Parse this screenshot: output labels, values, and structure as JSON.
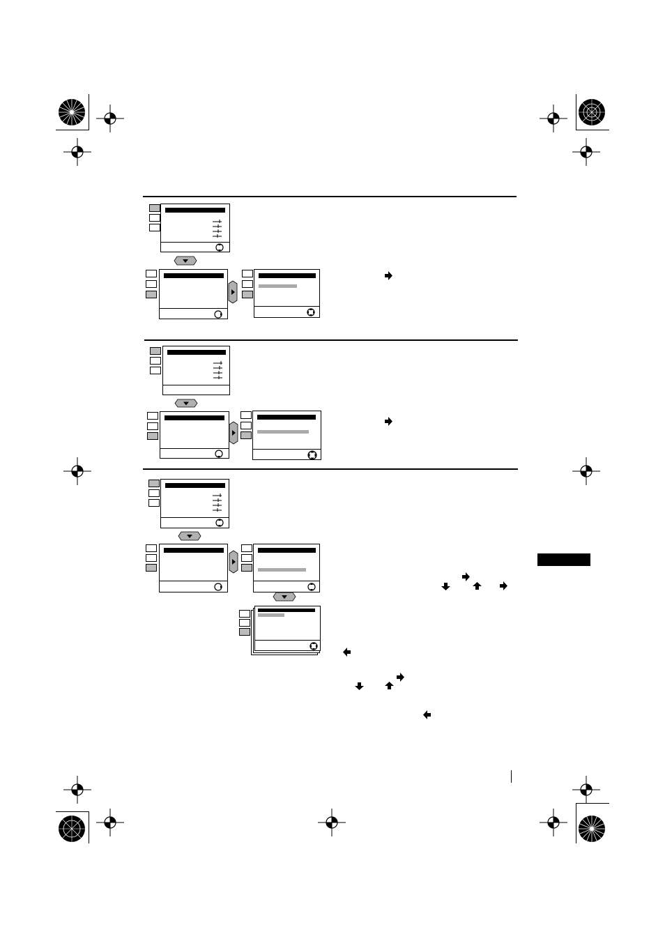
{
  "page": {
    "background": "#ffffff",
    "ink": "#000000",
    "highlight_gray": "#aaaaaa",
    "button_gray": "#b0b0b0"
  },
  "icons": {
    "crop_target": "crosshair-registration-icon",
    "rosette": "print-rosette-icon",
    "picture_menu": "picture-adjust-icon",
    "timer_menu": "clock-icon",
    "setup_menu": "toolbox-icon",
    "arrow_right": "arrow-right-icon",
    "arrow_left": "arrow-left-icon",
    "arrow_up": "arrow-up-icon",
    "arrow_down": "arrow-down-icon",
    "nav_wheel": "navigation-wheel-icon",
    "remote_down_button": "remote-down-button-icon",
    "remote_right_button": "remote-right-button-icon"
  },
  "sections": [
    {
      "id": "section-1"
    },
    {
      "id": "section-2"
    },
    {
      "id": "section-3"
    }
  ]
}
